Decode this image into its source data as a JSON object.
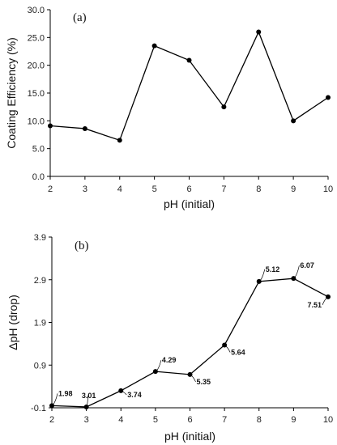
{
  "chart_data": [
    {
      "type": "line",
      "panel_label": "(a)",
      "xlabel": "pH (initial)",
      "ylabel": "Coating Efficiency (%)",
      "x": [
        2,
        3,
        4,
        5,
        6,
        7,
        8,
        9,
        10
      ],
      "y": [
        9.1,
        8.6,
        6.5,
        23.5,
        20.9,
        12.5,
        26.0,
        10.0,
        14.2
      ],
      "xlim": [
        2,
        10
      ],
      "ylim": [
        0,
        30
      ],
      "xticks": [
        "2",
        "3",
        "4",
        "5",
        "6",
        "7",
        "8",
        "9",
        "10"
      ],
      "yticks": [
        "0.0",
        "5.0",
        "10.0",
        "15.0",
        "20.0",
        "25.0",
        "30.0"
      ],
      "grid": false,
      "color": "#000000"
    },
    {
      "type": "line",
      "panel_label": "(b)",
      "xlabel": "pH (initial)",
      "ylabel": "ΔpH (drop)",
      "x": [
        2,
        3,
        4,
        5,
        6,
        7,
        8,
        9,
        10
      ],
      "y": [
        -0.05,
        -0.08,
        0.3,
        0.75,
        0.68,
        1.37,
        2.86,
        2.93,
        2.5
      ],
      "point_labels": [
        "1.98",
        "3.01",
        "3.74",
        "4.29",
        "5.35",
        "5.64",
        "5.12",
        "6.07",
        "7.51"
      ],
      "xlim": [
        2,
        10
      ],
      "ylim": [
        -0.1,
        3.9
      ],
      "xticks": [
        "2",
        "3",
        "4",
        "5",
        "6",
        "7",
        "8",
        "9",
        "10"
      ],
      "yticks": [
        "-0.1",
        "0.9",
        "1.9",
        "2.9",
        "3.9"
      ],
      "grid": false,
      "color": "#000000"
    }
  ]
}
